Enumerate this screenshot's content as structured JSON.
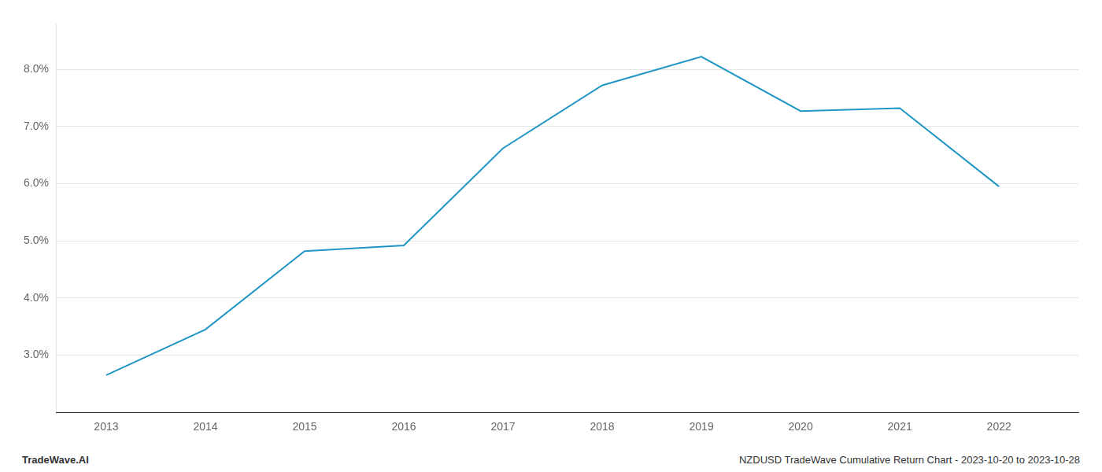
{
  "chart_data": {
    "type": "line",
    "x": [
      2013,
      2014,
      2015,
      2016,
      2017,
      2018,
      2019,
      2020,
      2021,
      2022
    ],
    "values": [
      2.65,
      3.45,
      4.82,
      4.92,
      6.62,
      7.72,
      8.22,
      7.27,
      7.32,
      5.95
    ],
    "color": "#2196c4",
    "xlim": [
      2012.5,
      2022.8
    ],
    "ylim": [
      2.0,
      8.8
    ],
    "xticks": [
      2013,
      2014,
      2015,
      2016,
      2017,
      2018,
      2019,
      2020,
      2021,
      2022
    ],
    "yticks": [
      {
        "value": 3.0,
        "label": "3.0%"
      },
      {
        "value": 4.0,
        "label": "4.0%"
      },
      {
        "value": 5.0,
        "label": "5.0%"
      },
      {
        "value": 6.0,
        "label": "6.0%"
      },
      {
        "value": 7.0,
        "label": "7.0%"
      },
      {
        "value": 8.0,
        "label": "8.0%"
      }
    ],
    "grid": "y",
    "annotations": [
      {
        "text": "TradeWave.AI"
      },
      {
        "text": "NZDUSD TradeWave Cumulative Return Chart - 2023-10-20 to 2023-10-28"
      }
    ]
  }
}
